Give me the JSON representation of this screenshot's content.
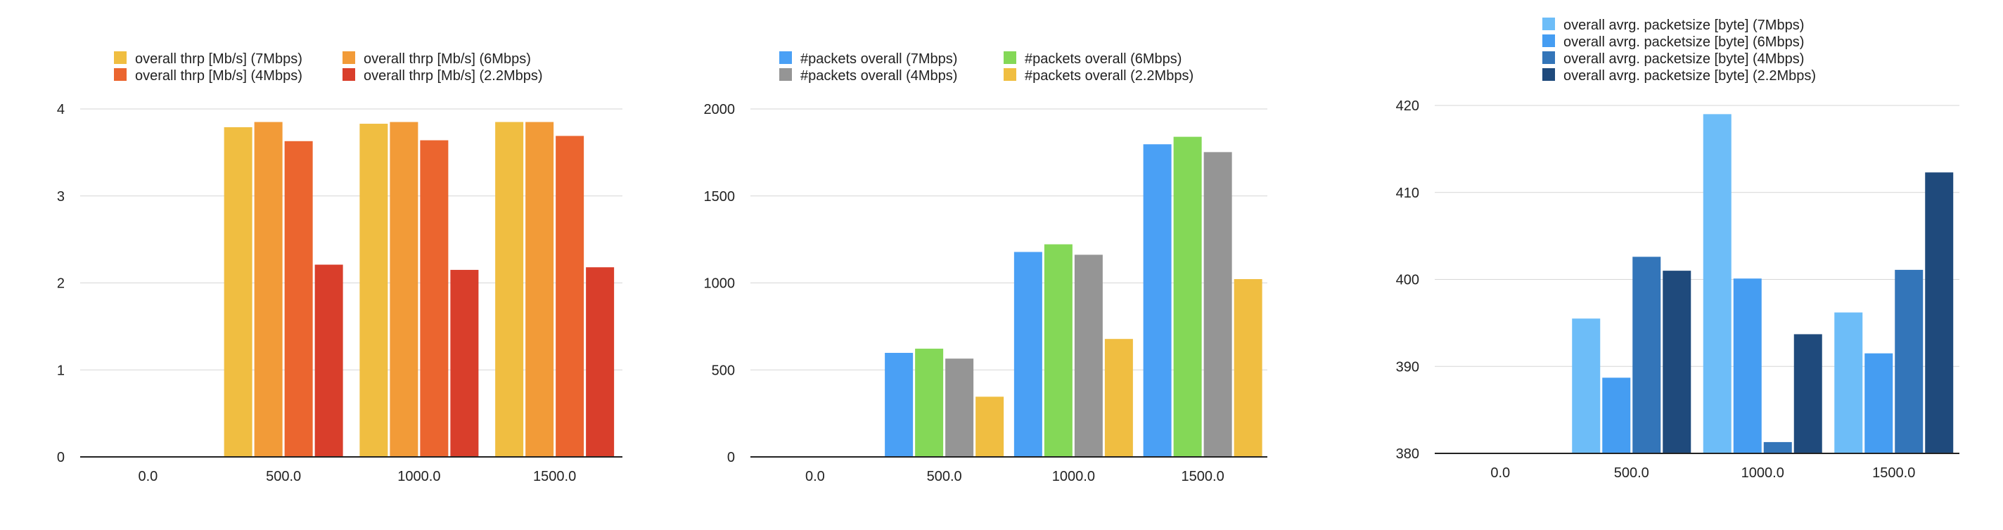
{
  "chart_data": [
    {
      "type": "bar",
      "title": "",
      "xlabel": "",
      "ylabel": "",
      "categories": [
        "0.0",
        "500.0",
        "1000.0",
        "1500.0"
      ],
      "y_ticks": [
        "0",
        "1",
        "2",
        "3",
        "4"
      ],
      "ylim": [
        0,
        4
      ],
      "grid": true,
      "legend": "top",
      "series": [
        {
          "name": "overall thrp [Mb/s] (7Mbps)",
          "color": "#F0BE41",
          "values": [
            null,
            3.79,
            3.83,
            3.85
          ]
        },
        {
          "name": "overall thrp [Mb/s] (6Mbps)",
          "color": "#F29B38",
          "values": [
            null,
            3.85,
            3.85,
            3.85
          ]
        },
        {
          "name": "overall thrp [Mb/s] (4Mbps)",
          "color": "#EB652F",
          "values": [
            null,
            3.63,
            3.64,
            3.69
          ]
        },
        {
          "name": "overall thrp [Mb/s] (2.2Mbps)",
          "color": "#D93E2B",
          "values": [
            null,
            2.21,
            2.15,
            2.18
          ]
        }
      ]
    },
    {
      "type": "bar",
      "title": "",
      "xlabel": "",
      "ylabel": "",
      "categories": [
        "0.0",
        "500.0",
        "1000.0",
        "1500.0"
      ],
      "y_ticks": [
        "0",
        "500",
        "1000",
        "1500",
        "2000"
      ],
      "ylim": [
        0,
        2000
      ],
      "grid": true,
      "legend": "top",
      "series": [
        {
          "name": "#packets overall (7Mbps)",
          "color": "#4AA0F5",
          "values": [
            null,
            598,
            1178,
            1797
          ]
        },
        {
          "name": "#packets overall (6Mbps)",
          "color": "#84D857",
          "values": [
            null,
            622,
            1222,
            1840
          ]
        },
        {
          "name": "#packets overall (4Mbps)",
          "color": "#959595",
          "values": [
            null,
            565,
            1162,
            1752
          ]
        },
        {
          "name": "#packets overall (2.2Mbps)",
          "color": "#F0BE41",
          "values": [
            null,
            346,
            678,
            1022
          ]
        }
      ]
    },
    {
      "type": "bar",
      "title": "",
      "xlabel": "",
      "ylabel": "",
      "categories": [
        "0.0",
        "500.0",
        "1000.0",
        "1500.0"
      ],
      "y_ticks": [
        "380",
        "390",
        "400",
        "410",
        "420"
      ],
      "ylim": [
        380,
        420
      ],
      "grid": true,
      "legend": "top",
      "series": [
        {
          "name": "overall avrg. packetsize [byte] (7Mbps)",
          "color": "#6DBDF8",
          "values": [
            null,
            395.5,
            419.0,
            396.2
          ]
        },
        {
          "name": "overall avrg. packetsize [byte] (6Mbps)",
          "color": "#459DF2",
          "values": [
            null,
            388.7,
            400.1,
            391.5
          ]
        },
        {
          "name": "overall avrg. packetsize [byte] (4Mbps)",
          "color": "#3375B9",
          "values": [
            null,
            402.6,
            381.3,
            401.1
          ]
        },
        {
          "name": "overall avrg. packetsize [byte] (2.2Mbps)",
          "color": "#1F4A7C",
          "values": [
            null,
            401.0,
            393.7,
            412.3
          ]
        }
      ]
    }
  ]
}
